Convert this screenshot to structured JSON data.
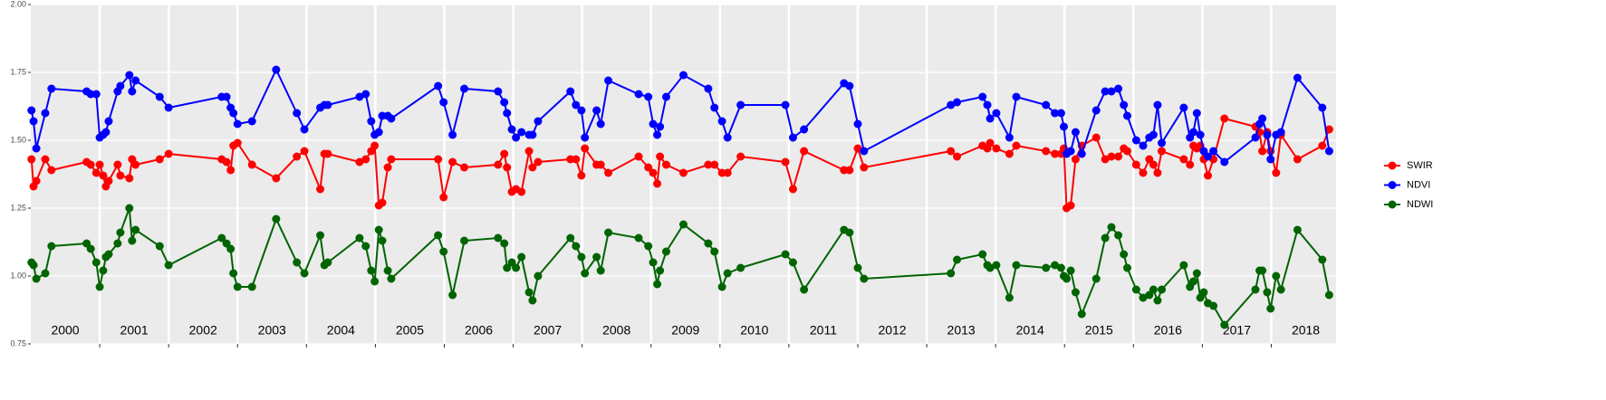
{
  "chart_data": {
    "type": "line",
    "x": [
      2000.01,
      2000.04,
      2000.08,
      2000.21,
      2000.3,
      2000.81,
      2000.87,
      2000.95,
      2001.0,
      2001.05,
      2001.09,
      2001.13,
      2001.26,
      2001.3,
      2001.43,
      2001.47,
      2001.52,
      2001.87,
      2002.0,
      2002.77,
      2002.84,
      2002.9,
      2002.94,
      2003.0,
      2003.21,
      2003.56,
      2003.86,
      2003.97,
      2004.2,
      2004.26,
      2004.31,
      2004.77,
      2004.86,
      2004.94,
      2004.99,
      2005.05,
      2005.1,
      2005.18,
      2005.23,
      2005.91,
      2005.99,
      2006.12,
      2006.29,
      2006.78,
      2006.87,
      2006.91,
      2006.98,
      2007.04,
      2007.12,
      2007.23,
      2007.28,
      2007.36,
      2007.83,
      2007.91,
      2007.99,
      2008.04,
      2008.21,
      2008.27,
      2008.38,
      2008.82,
      2008.96,
      2009.03,
      2009.09,
      2009.13,
      2009.22,
      2009.47,
      2009.83,
      2009.92,
      2010.03,
      2010.11,
      2010.3,
      2010.95,
      2011.06,
      2011.22,
      2011.8,
      2011.88,
      2012.0,
      2012.09,
      2013.35,
      2013.44,
      2013.81,
      2013.88,
      2013.92,
      2014.01,
      2014.2,
      2014.3,
      2014.73,
      2014.86,
      2014.95,
      2014.99,
      2015.03,
      2015.09,
      2015.16,
      2015.25,
      2015.46,
      2015.59,
      2015.68,
      2015.78,
      2015.86,
      2015.91,
      2016.04,
      2016.14,
      2016.23,
      2016.29,
      2016.35,
      2016.41,
      2016.73,
      2016.82,
      2016.87,
      2016.92,
      2016.97,
      2017.02,
      2017.08,
      2017.16,
      2017.32,
      2017.77,
      2017.83,
      2017.87,
      2017.94,
      2017.99,
      2018.07,
      2018.14,
      2018.38,
      2018.74,
      2018.84
    ],
    "series": [
      {
        "name": "SWIR",
        "color": "#ff0000",
        "values": [
          1.43,
          1.33,
          1.35,
          1.43,
          1.39,
          1.42,
          1.41,
          1.38,
          1.41,
          1.37,
          1.33,
          1.35,
          1.41,
          1.37,
          1.36,
          1.43,
          1.41,
          1.43,
          1.45,
          1.43,
          1.42,
          1.39,
          1.48,
          1.49,
          1.41,
          1.36,
          1.44,
          1.46,
          1.32,
          1.45,
          1.45,
          1.42,
          1.43,
          1.46,
          1.48,
          1.26,
          1.27,
          1.4,
          1.43,
          1.43,
          1.29,
          1.42,
          1.4,
          1.41,
          1.45,
          1.4,
          1.31,
          1.32,
          1.31,
          1.46,
          1.4,
          1.42,
          1.43,
          1.43,
          1.37,
          1.47,
          1.41,
          1.41,
          1.38,
          1.44,
          1.4,
          1.38,
          1.34,
          1.44,
          1.41,
          1.38,
          1.41,
          1.41,
          1.38,
          1.38,
          1.44,
          1.42,
          1.32,
          1.46,
          1.39,
          1.39,
          1.47,
          1.4,
          1.46,
          1.44,
          1.48,
          1.47,
          1.49,
          1.47,
          1.45,
          1.48,
          1.46,
          1.45,
          1.45,
          1.47,
          1.25,
          1.26,
          1.43,
          1.48,
          1.51,
          1.43,
          1.44,
          1.44,
          1.47,
          1.46,
          1.41,
          1.38,
          1.43,
          1.41,
          1.38,
          1.46,
          1.43,
          1.41,
          1.48,
          1.47,
          1.48,
          1.43,
          1.37,
          1.43,
          1.58,
          1.55,
          1.53,
          1.46,
          1.53,
          1.46,
          1.38,
          1.52,
          1.43,
          1.48,
          1.54
        ]
      },
      {
        "name": "NDVI",
        "color": "#0000ff",
        "values": [
          1.61,
          1.57,
          1.47,
          1.6,
          1.69,
          1.68,
          1.67,
          1.67,
          1.51,
          1.52,
          1.53,
          1.57,
          1.68,
          1.7,
          1.74,
          1.68,
          1.72,
          1.66,
          1.62,
          1.66,
          1.66,
          1.62,
          1.6,
          1.56,
          1.57,
          1.76,
          1.6,
          1.54,
          1.62,
          1.63,
          1.63,
          1.66,
          1.67,
          1.57,
          1.52,
          1.53,
          1.59,
          1.59,
          1.58,
          1.7,
          1.64,
          1.52,
          1.69,
          1.68,
          1.64,
          1.6,
          1.54,
          1.51,
          1.53,
          1.52,
          1.52,
          1.57,
          1.68,
          1.63,
          1.61,
          1.51,
          1.61,
          1.56,
          1.72,
          1.67,
          1.66,
          1.56,
          1.52,
          1.55,
          1.66,
          1.74,
          1.69,
          1.62,
          1.57,
          1.51,
          1.63,
          1.63,
          1.51,
          1.54,
          1.71,
          1.7,
          1.56,
          1.46,
          1.63,
          1.64,
          1.66,
          1.63,
          1.58,
          1.6,
          1.51,
          1.66,
          1.63,
          1.6,
          1.6,
          1.55,
          1.45,
          1.46,
          1.53,
          1.45,
          1.61,
          1.68,
          1.68,
          1.69,
          1.63,
          1.59,
          1.5,
          1.48,
          1.51,
          1.52,
          1.63,
          1.49,
          1.62,
          1.51,
          1.53,
          1.6,
          1.52,
          1.46,
          1.44,
          1.46,
          1.42,
          1.51,
          1.56,
          1.58,
          1.52,
          1.43,
          1.52,
          1.53,
          1.73,
          1.62,
          1.46
        ]
      },
      {
        "name": "NDWI",
        "color": "#006400",
        "values": [
          1.05,
          1.04,
          0.99,
          1.01,
          1.11,
          1.12,
          1.1,
          1.05,
          0.96,
          1.02,
          1.07,
          1.08,
          1.12,
          1.16,
          1.25,
          1.13,
          1.17,
          1.11,
          1.04,
          1.14,
          1.12,
          1.1,
          1.01,
          0.96,
          0.96,
          1.21,
          1.05,
          1.01,
          1.15,
          1.04,
          1.05,
          1.14,
          1.11,
          1.02,
          0.98,
          1.17,
          1.13,
          1.02,
          0.99,
          1.15,
          1.09,
          0.93,
          1.13,
          1.14,
          1.12,
          1.03,
          1.05,
          1.03,
          1.07,
          0.94,
          0.91,
          1.0,
          1.14,
          1.11,
          1.07,
          1.01,
          1.07,
          1.02,
          1.16,
          1.14,
          1.11,
          1.05,
          0.97,
          1.02,
          1.09,
          1.19,
          1.12,
          1.09,
          0.96,
          1.01,
          1.03,
          1.08,
          1.05,
          0.95,
          1.17,
          1.16,
          1.03,
          0.99,
          1.01,
          1.06,
          1.08,
          1.04,
          1.03,
          1.04,
          0.92,
          1.04,
          1.03,
          1.04,
          1.03,
          1.0,
          0.99,
          1.02,
          0.94,
          0.86,
          0.99,
          1.14,
          1.18,
          1.15,
          1.08,
          1.03,
          0.95,
          0.92,
          0.93,
          0.95,
          0.91,
          0.95,
          1.04,
          0.96,
          0.98,
          1.01,
          0.92,
          0.94,
          0.9,
          0.89,
          0.82,
          0.95,
          1.02,
          1.02,
          0.94,
          0.88,
          1.0,
          0.95,
          1.17,
          1.06,
          0.93
        ]
      }
    ],
    "xlim": [
      2000.0,
      2018.94
    ],
    "ylim": [
      0.75,
      2.0
    ],
    "yticks": [
      {
        "value": 0.75,
        "label": "0.75"
      },
      {
        "value": 1.0,
        "label": "1.00"
      },
      {
        "value": 1.25,
        "label": "1.25"
      },
      {
        "value": 1.5,
        "label": "1.50"
      },
      {
        "value": 1.75,
        "label": "1.75"
      },
      {
        "value": 2.0,
        "label": "2.00"
      }
    ],
    "xticks": [
      2001,
      2002,
      2003,
      2004,
      2005,
      2006,
      2007,
      2008,
      2009,
      2010,
      2011,
      2012,
      2013,
      2014,
      2015,
      2016,
      2017,
      2018
    ],
    "year_labels": [
      {
        "value": 2000.5,
        "label": "2000"
      },
      {
        "value": 2001.5,
        "label": "2001"
      },
      {
        "value": 2002.5,
        "label": "2002"
      },
      {
        "value": 2003.5,
        "label": "2003"
      },
      {
        "value": 2004.5,
        "label": "2004"
      },
      {
        "value": 2005.5,
        "label": "2005"
      },
      {
        "value": 2006.5,
        "label": "2006"
      },
      {
        "value": 2007.5,
        "label": "2007"
      },
      {
        "value": 2008.5,
        "label": "2008"
      },
      {
        "value": 2009.5,
        "label": "2009"
      },
      {
        "value": 2010.5,
        "label": "2010"
      },
      {
        "value": 2011.5,
        "label": "2011"
      },
      {
        "value": 2012.5,
        "label": "2012"
      },
      {
        "value": 2013.5,
        "label": "2013"
      },
      {
        "value": 2014.5,
        "label": "2014"
      },
      {
        "value": 2015.5,
        "label": "2015"
      },
      {
        "value": 2016.5,
        "label": "2016"
      },
      {
        "value": 2017.5,
        "label": "2017"
      },
      {
        "value": 2018.5,
        "label": "2018"
      }
    ],
    "grid": true,
    "legend": "right"
  }
}
